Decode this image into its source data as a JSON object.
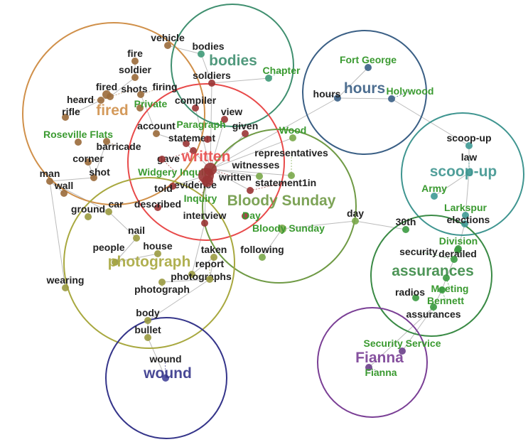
{
  "clusters": [
    {
      "label": "fired",
      "color": "#d0904a",
      "node_color": "#9a6a3a"
    },
    {
      "label": "bodies",
      "color": "#3f8f6f",
      "node_color": "#3f9a78"
    },
    {
      "label": "written",
      "color": "#e84a4a",
      "node_color": "#9a3535"
    },
    {
      "label": "hours",
      "color": "#3a5f85",
      "node_color": "#3a5f85"
    },
    {
      "label": "Bloody Sunday",
      "color": "#6f9a45",
      "node_color": "#7aa84a"
    },
    {
      "label": "scoop-up",
      "color": "#3f9590",
      "node_color": "#3f9a95"
    },
    {
      "label": "photograph",
      "color": "#a8a83f",
      "node_color": "#9a9a40"
    },
    {
      "label": "assurances",
      "color": "#3a8a45",
      "node_color": "#3a9a40"
    },
    {
      "label": "wound",
      "color": "#35358a",
      "node_color": "#45459a"
    },
    {
      "label": "Fianna",
      "color": "#7a3f95",
      "node_color": "#6a3f8a"
    }
  ],
  "entity_color": "#3a9a30",
  "nodes": [
    {
      "label": "vehicle",
      "c": 0
    },
    {
      "label": "fire",
      "c": 0
    },
    {
      "label": "soldier",
      "c": 0
    },
    {
      "label": "fired",
      "c": 0
    },
    {
      "label": "shots",
      "c": 0
    },
    {
      "label": "heard",
      "c": 0
    },
    {
      "label": "firing",
      "c": 0
    },
    {
      "label": "Private",
      "c": 0,
      "entity": true
    },
    {
      "label": "rifle",
      "c": 0
    },
    {
      "label": "Roseville Flats",
      "c": 0,
      "entity": true
    },
    {
      "label": "barricade",
      "c": 0
    },
    {
      "label": "account",
      "c": 0
    },
    {
      "label": "corner",
      "c": 0
    },
    {
      "label": "shot",
      "c": 0
    },
    {
      "label": "man",
      "c": 0
    },
    {
      "label": "wall",
      "c": 0
    },
    {
      "label": "bodies",
      "c": 1
    },
    {
      "label": "Chapter",
      "c": 1,
      "entity": true
    },
    {
      "label": "soldiers",
      "c": 2
    },
    {
      "label": "compiler",
      "c": 2
    },
    {
      "label": "view",
      "c": 2
    },
    {
      "label": "given",
      "c": 2
    },
    {
      "label": "statement",
      "c": 2
    },
    {
      "label": "Paragraph",
      "c": 2,
      "entity": true
    },
    {
      "label": "gave",
      "c": 2
    },
    {
      "label": "Widgery Inquiry",
      "c": 2,
      "entity": true
    },
    {
      "label": "written",
      "c": 2
    },
    {
      "label": "evidence",
      "c": 2
    },
    {
      "label": "Inquiry",
      "c": 2,
      "entity": true
    },
    {
      "label": "told",
      "c": 2
    },
    {
      "label": "described",
      "c": 2
    },
    {
      "label": "interview",
      "c": 2
    },
    {
      "label": "statement1in",
      "c": 2
    },
    {
      "label": "Day",
      "c": 2,
      "entity": true
    },
    {
      "label": "Wood",
      "c": 4,
      "entity": true
    },
    {
      "label": "witnesses",
      "c": 4
    },
    {
      "label": "representatives",
      "c": 4
    },
    {
      "label": "Bloody Sunday",
      "c": 4,
      "entity": true
    },
    {
      "label": "following",
      "c": 4
    },
    {
      "label": "day",
      "c": 4
    },
    {
      "label": "Fort George",
      "c": 3,
      "entity": true
    },
    {
      "label": "hours",
      "c": 3
    },
    {
      "label": "Holywood",
      "c": 3,
      "entity": true
    },
    {
      "label": "scoop-up",
      "c": 5
    },
    {
      "label": "law",
      "c": 5
    },
    {
      "label": "Army",
      "c": 5,
      "entity": true
    },
    {
      "label": "Larkspur",
      "c": 5,
      "entity": true
    },
    {
      "label": "elections",
      "c": 5
    },
    {
      "label": "30th",
      "c": 7
    },
    {
      "label": "Division",
      "c": 7,
      "entity": true
    },
    {
      "label": "derailed",
      "c": 7
    },
    {
      "label": "security",
      "c": 7
    },
    {
      "label": "Meeting",
      "c": 7,
      "entity": true
    },
    {
      "label": "Bennett",
      "c": 7,
      "entity": true
    },
    {
      "label": "radios",
      "c": 7
    },
    {
      "label": "assurances",
      "c": 7
    },
    {
      "label": "ground",
      "c": 6
    },
    {
      "label": "car",
      "c": 6
    },
    {
      "label": "nail",
      "c": 6
    },
    {
      "label": "people",
      "c": 6
    },
    {
      "label": "house",
      "c": 6
    },
    {
      "label": "taken",
      "c": 6
    },
    {
      "label": "photographs",
      "c": 6
    },
    {
      "label": "photograph",
      "c": 6
    },
    {
      "label": "report",
      "c": 6
    },
    {
      "label": "wearing",
      "c": 6
    },
    {
      "label": "body",
      "c": 6
    },
    {
      "label": "bullet",
      "c": 6
    },
    {
      "label": "wound",
      "c": 8
    },
    {
      "label": "Security Service",
      "c": 9,
      "entity": true
    },
    {
      "label": "Fianna",
      "c": 9,
      "entity": true
    }
  ],
  "edges": [
    [
      0,
      16
    ],
    [
      1,
      2
    ],
    [
      2,
      4
    ],
    [
      4,
      5
    ],
    [
      5,
      8
    ],
    [
      6,
      11
    ],
    [
      11,
      22
    ],
    [
      10,
      13
    ],
    [
      13,
      14
    ],
    [
      14,
      15
    ],
    [
      12,
      13
    ],
    [
      18,
      16
    ],
    [
      18,
      17
    ],
    [
      18,
      26
    ],
    [
      19,
      26
    ],
    [
      20,
      26
    ],
    [
      21,
      26
    ],
    [
      22,
      26
    ],
    [
      26,
      27
    ],
    [
      27,
      29
    ],
    [
      27,
      31
    ],
    [
      31,
      62
    ],
    [
      26,
      34
    ],
    [
      26,
      35
    ],
    [
      26,
      36
    ],
    [
      26,
      32
    ],
    [
      26,
      41
    ],
    [
      37,
      38
    ],
    [
      37,
      39
    ],
    [
      39,
      48
    ],
    [
      41,
      40
    ],
    [
      41,
      42
    ],
    [
      42,
      43
    ],
    [
      43,
      44
    ],
    [
      44,
      45
    ],
    [
      44,
      47
    ],
    [
      47,
      50
    ],
    [
      50,
      51
    ],
    [
      51,
      52
    ],
    [
      52,
      53
    ],
    [
      53,
      55
    ],
    [
      55,
      69
    ],
    [
      55,
      70
    ],
    [
      57,
      58
    ],
    [
      58,
      59
    ],
    [
      59,
      60
    ],
    [
      61,
      64
    ],
    [
      61,
      62
    ],
    [
      63,
      64
    ],
    [
      64,
      66
    ],
    [
      66,
      67
    ],
    [
      67,
      68
    ],
    [
      14,
      65
    ],
    [
      57,
      14
    ]
  ]
}
